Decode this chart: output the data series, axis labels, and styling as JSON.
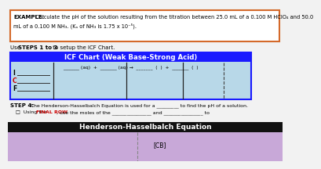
{
  "bg_color": "#f2f2f2",
  "example_box_border": "#d4692a",
  "example_bold": "EXAMPLE:",
  "example_line1": " Calculate the pH of the solution resulting from the titration between 25.0 mL of a 0.100 M HClO₄ and 50.0",
  "example_line2": "mL of a 0.100 M NH₃. (Kₐ of NH₃ is 1.75 x 10⁻⁵).",
  "steps_pre": "Use ",
  "steps_bold": "STEPS 1 to 3",
  "steps_post": " to setup the ICF Chart.",
  "icf_title": "ICF Chart (Weak Base-Strong Acid)",
  "icf_header_bg": "#1a1aff",
  "icf_body_bg": "#b8d8e8",
  "icf_title_color": "#ffffff",
  "icf_row_labels": [
    "I",
    "C",
    "F"
  ],
  "icf_row_label_colors": [
    "#000000",
    "#cc0000",
    "#000000"
  ],
  "eq_part1": "_______ (aq)  +  _______ (aq) →  _______  (  )  +  _______  (  )",
  "step4_bold": "STEP 4:",
  "step4_rest": " The Henderson-Hasselbalch Equation is used for a _________ to find the pH of a solution.",
  "step4b_pre": "□  Using the ",
  "step4b_red": "FINAL ROW",
  "step4b_post": ", use the moles of the ________________ and ________________ to",
  "hh_title": "Henderson-Hasselbalch Equation",
  "hh_bg": "#111111",
  "hh_title_color": "#ffffff",
  "hh_body_bg": "#c8a8d8",
  "cb_label": "[CB]"
}
